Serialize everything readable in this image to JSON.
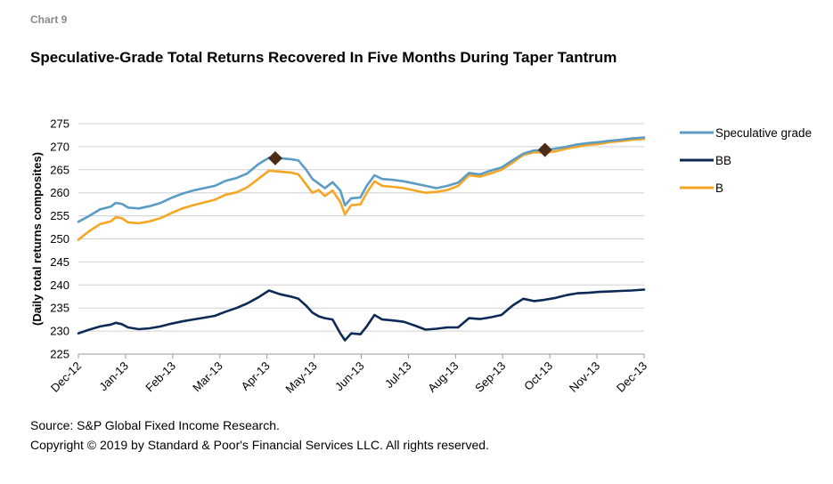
{
  "header": {
    "chart_label": "Chart 9",
    "title": "Speculative-Grade Total Returns Recovered In Five Months During Taper Tantrum"
  },
  "footer": {
    "source": "Source: S&P Global Fixed Income Research.",
    "copyright": "Copyright © 2019 by Standard & Poor's Financial Services LLC. All rights reserved."
  },
  "colors": {
    "speculative": "#5b9bc4",
    "bb": "#0d2a56",
    "b": "#f5a623",
    "marker": "#4a2c17",
    "grid": "#d0d0d0"
  },
  "chart_data": {
    "type": "line",
    "title": "Speculative-Grade Total Returns Recovered In Five Months During Taper Tantrum",
    "ylabel": "(Daily total returns composites)",
    "xlabel": "",
    "ylim": [
      225,
      275
    ],
    "yticks": [
      225,
      230,
      235,
      240,
      245,
      250,
      255,
      260,
      265,
      270,
      275
    ],
    "xlim": [
      "2012-12-31",
      "2013-12-31"
    ],
    "xticks": [
      "Dec-12",
      "Jan-13",
      "Feb-13",
      "Mar-13",
      "Apr-13",
      "May-13",
      "Jun-13",
      "Jul-13",
      "Aug-13",
      "Sep-13",
      "Oct-13",
      "Nov-13",
      "Dec-13"
    ],
    "grid": true,
    "legend_position": "right",
    "series": [
      {
        "name": "Speculative grade",
        "color": "#5b9bc4",
        "points": [
          [
            "2012-12-31",
            253.7
          ],
          [
            "2013-01-07",
            255.0
          ],
          [
            "2013-01-14",
            256.4
          ],
          [
            "2013-01-21",
            257.0
          ],
          [
            "2013-01-24",
            257.8
          ],
          [
            "2013-01-28",
            257.6
          ],
          [
            "2013-02-01",
            256.8
          ],
          [
            "2013-02-08",
            256.6
          ],
          [
            "2013-02-15",
            257.1
          ],
          [
            "2013-02-22",
            257.8
          ],
          [
            "2013-03-01",
            258.9
          ],
          [
            "2013-03-08",
            259.8
          ],
          [
            "2013-03-15",
            260.5
          ],
          [
            "2013-03-22",
            261.0
          ],
          [
            "2013-03-29",
            261.5
          ],
          [
            "2013-04-05",
            262.6
          ],
          [
            "2013-04-12",
            263.2
          ],
          [
            "2013-04-19",
            264.2
          ],
          [
            "2013-04-26",
            266.2
          ],
          [
            "2013-05-03",
            267.6
          ],
          [
            "2013-05-10",
            267.5
          ],
          [
            "2013-05-17",
            267.3
          ],
          [
            "2013-05-22",
            267.0
          ],
          [
            "2013-05-27",
            265.0
          ],
          [
            "2013-05-31",
            263.0
          ],
          [
            "2013-06-04",
            262.0
          ],
          [
            "2013-06-08",
            261.0
          ],
          [
            "2013-06-13",
            262.3
          ],
          [
            "2013-06-18",
            260.5
          ],
          [
            "2013-06-21",
            257.3
          ],
          [
            "2013-06-25",
            258.8
          ],
          [
            "2013-07-01",
            259.0
          ],
          [
            "2013-07-05",
            261.5
          ],
          [
            "2013-07-10",
            263.8
          ],
          [
            "2013-07-15",
            263.0
          ],
          [
            "2013-07-22",
            262.8
          ],
          [
            "2013-07-29",
            262.5
          ],
          [
            "2013-08-05",
            262.0
          ],
          [
            "2013-08-12",
            261.5
          ],
          [
            "2013-08-19",
            261.0
          ],
          [
            "2013-08-26",
            261.5
          ],
          [
            "2013-09-02",
            262.2
          ],
          [
            "2013-09-09",
            264.3
          ],
          [
            "2013-09-16",
            264.0
          ],
          [
            "2013-09-23",
            264.8
          ],
          [
            "2013-09-30",
            265.5
          ],
          [
            "2013-10-07",
            267.0
          ],
          [
            "2013-10-14",
            268.5
          ],
          [
            "2013-10-21",
            269.2
          ],
          [
            "2013-10-28",
            269.2
          ],
          [
            "2013-11-04",
            269.6
          ],
          [
            "2013-11-11",
            270.0
          ],
          [
            "2013-11-18",
            270.5
          ],
          [
            "2013-11-25",
            270.8
          ],
          [
            "2013-12-02",
            271.0
          ],
          [
            "2013-12-09",
            271.3
          ],
          [
            "2013-12-16",
            271.5
          ],
          [
            "2013-12-23",
            271.8
          ],
          [
            "2013-12-31",
            272.0
          ]
        ]
      },
      {
        "name": "BB",
        "color": "#0d2a56",
        "points": [
          [
            "2012-12-31",
            229.5
          ],
          [
            "2013-01-07",
            230.3
          ],
          [
            "2013-01-14",
            231.0
          ],
          [
            "2013-01-21",
            231.4
          ],
          [
            "2013-01-24",
            231.8
          ],
          [
            "2013-01-28",
            231.5
          ],
          [
            "2013-02-01",
            230.8
          ],
          [
            "2013-02-08",
            230.4
          ],
          [
            "2013-02-15",
            230.6
          ],
          [
            "2013-02-22",
            231.0
          ],
          [
            "2013-03-01",
            231.6
          ],
          [
            "2013-03-08",
            232.1
          ],
          [
            "2013-03-15",
            232.5
          ],
          [
            "2013-03-22",
            232.9
          ],
          [
            "2013-03-29",
            233.3
          ],
          [
            "2013-04-05",
            234.2
          ],
          [
            "2013-04-12",
            235.0
          ],
          [
            "2013-04-19",
            236.0
          ],
          [
            "2013-04-26",
            237.3
          ],
          [
            "2013-05-03",
            238.8
          ],
          [
            "2013-05-10",
            238.0
          ],
          [
            "2013-05-17",
            237.5
          ],
          [
            "2013-05-22",
            237.0
          ],
          [
            "2013-05-27",
            235.5
          ],
          [
            "2013-05-31",
            234.0
          ],
          [
            "2013-06-04",
            233.2
          ],
          [
            "2013-06-08",
            232.8
          ],
          [
            "2013-06-13",
            232.5
          ],
          [
            "2013-06-18",
            229.5
          ],
          [
            "2013-06-21",
            228.0
          ],
          [
            "2013-06-25",
            229.5
          ],
          [
            "2013-07-01",
            229.3
          ],
          [
            "2013-07-05",
            231.0
          ],
          [
            "2013-07-10",
            233.5
          ],
          [
            "2013-07-15",
            232.5
          ],
          [
            "2013-07-22",
            232.3
          ],
          [
            "2013-07-29",
            232.0
          ],
          [
            "2013-08-05",
            231.2
          ],
          [
            "2013-08-12",
            230.3
          ],
          [
            "2013-08-19",
            230.5
          ],
          [
            "2013-08-26",
            230.8
          ],
          [
            "2013-09-02",
            230.8
          ],
          [
            "2013-09-09",
            232.8
          ],
          [
            "2013-09-16",
            232.6
          ],
          [
            "2013-09-23",
            233.0
          ],
          [
            "2013-09-30",
            233.5
          ],
          [
            "2013-10-07",
            235.5
          ],
          [
            "2013-10-14",
            237.0
          ],
          [
            "2013-10-21",
            236.5
          ],
          [
            "2013-10-28",
            236.8
          ],
          [
            "2013-11-04",
            237.2
          ],
          [
            "2013-11-11",
            237.8
          ],
          [
            "2013-11-18",
            238.2
          ],
          [
            "2013-11-25",
            238.3
          ],
          [
            "2013-12-02",
            238.5
          ],
          [
            "2013-12-09",
            238.6
          ],
          [
            "2013-12-16",
            238.7
          ],
          [
            "2013-12-23",
            238.8
          ],
          [
            "2013-12-31",
            239.0
          ]
        ]
      },
      {
        "name": "B",
        "color": "#f5a623",
        "points": [
          [
            "2012-12-31",
            249.8
          ],
          [
            "2013-01-07",
            251.7
          ],
          [
            "2013-01-14",
            253.2
          ],
          [
            "2013-01-21",
            253.8
          ],
          [
            "2013-01-24",
            254.7
          ],
          [
            "2013-01-28",
            254.5
          ],
          [
            "2013-02-01",
            253.6
          ],
          [
            "2013-02-08",
            253.4
          ],
          [
            "2013-02-15",
            253.8
          ],
          [
            "2013-02-22",
            254.5
          ],
          [
            "2013-03-01",
            255.6
          ],
          [
            "2013-03-08",
            256.6
          ],
          [
            "2013-03-15",
            257.3
          ],
          [
            "2013-03-22",
            257.9
          ],
          [
            "2013-03-29",
            258.5
          ],
          [
            "2013-04-05",
            259.6
          ],
          [
            "2013-04-12",
            260.1
          ],
          [
            "2013-04-19",
            261.2
          ],
          [
            "2013-04-26",
            263.0
          ],
          [
            "2013-05-03",
            264.8
          ],
          [
            "2013-05-10",
            264.6
          ],
          [
            "2013-05-17",
            264.4
          ],
          [
            "2013-05-22",
            264.0
          ],
          [
            "2013-05-27",
            261.8
          ],
          [
            "2013-05-31",
            260.0
          ],
          [
            "2013-06-04",
            260.6
          ],
          [
            "2013-06-08",
            259.3
          ],
          [
            "2013-06-13",
            260.5
          ],
          [
            "2013-06-18",
            258.0
          ],
          [
            "2013-06-21",
            255.3
          ],
          [
            "2013-06-25",
            257.3
          ],
          [
            "2013-07-01",
            257.5
          ],
          [
            "2013-07-05",
            260.0
          ],
          [
            "2013-07-10",
            262.5
          ],
          [
            "2013-07-15",
            261.5
          ],
          [
            "2013-07-22",
            261.3
          ],
          [
            "2013-07-29",
            261.0
          ],
          [
            "2013-08-05",
            260.5
          ],
          [
            "2013-08-12",
            260.0
          ],
          [
            "2013-08-19",
            260.2
          ],
          [
            "2013-08-26",
            260.6
          ],
          [
            "2013-09-02",
            261.5
          ],
          [
            "2013-09-09",
            263.8
          ],
          [
            "2013-09-16",
            263.5
          ],
          [
            "2013-09-23",
            264.2
          ],
          [
            "2013-09-30",
            265.0
          ],
          [
            "2013-10-07",
            266.5
          ],
          [
            "2013-10-14",
            268.2
          ],
          [
            "2013-10-21",
            268.8
          ],
          [
            "2013-10-28",
            268.7
          ],
          [
            "2013-11-04",
            269.0
          ],
          [
            "2013-11-11",
            269.6
          ],
          [
            "2013-11-18",
            270.0
          ],
          [
            "2013-11-25",
            270.4
          ],
          [
            "2013-12-02",
            270.6
          ],
          [
            "2013-12-09",
            271.0
          ],
          [
            "2013-12-16",
            271.2
          ],
          [
            "2013-12-23",
            271.5
          ],
          [
            "2013-12-31",
            271.7
          ]
        ]
      }
    ],
    "markers": [
      {
        "x": "2013-05-07",
        "y": 267.5
      },
      {
        "x": "2013-10-28",
        "y": 269.3
      }
    ]
  }
}
